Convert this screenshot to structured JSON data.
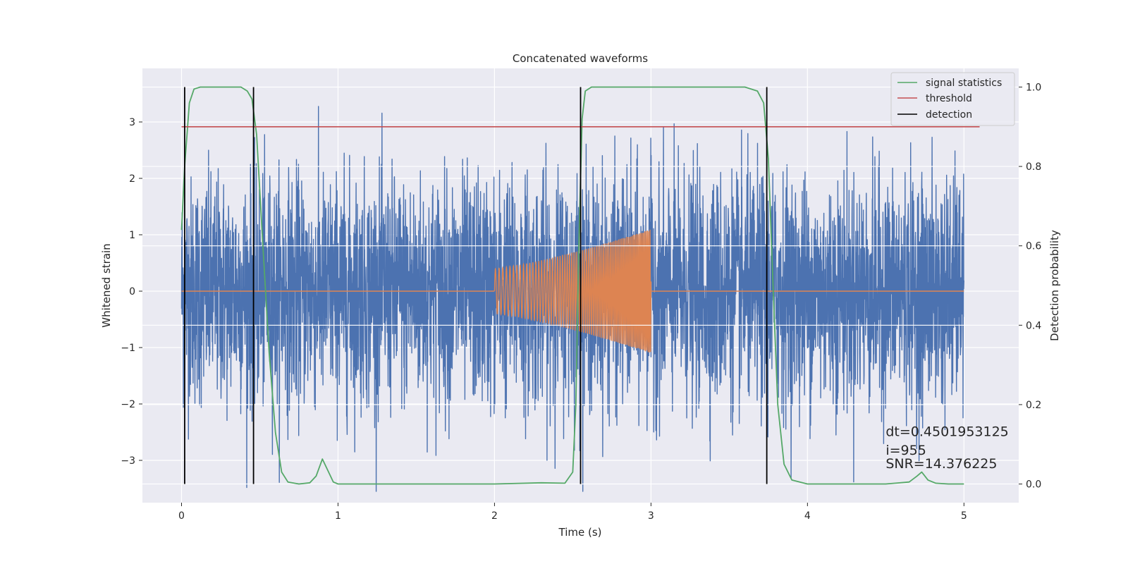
{
  "chart_data": {
    "type": "line",
    "title": "Concatenated waveforms",
    "xlabel": "Time (s)",
    "ylabel_left": "Whitened strain",
    "ylabel_right": "Detection probability",
    "xlim": [
      -0.25,
      5.35
    ],
    "ylim_left": [
      -3.75,
      3.95
    ],
    "ylim_right": [
      -0.047,
      1.047
    ],
    "x_ticks": [
      0,
      1,
      2,
      3,
      4,
      5
    ],
    "x_tick_labels": [
      "0",
      "1",
      "2",
      "3",
      "4",
      "5"
    ],
    "y_left_ticks": [
      -3,
      -2,
      -1,
      0,
      1,
      2,
      3
    ],
    "y_left_tick_labels": [
      "−3",
      "−2",
      "−1",
      "0",
      "1",
      "2",
      "3"
    ],
    "y_right_ticks": [
      0.0,
      0.2,
      0.4,
      0.6,
      0.8,
      1.0
    ],
    "y_right_tick_labels": [
      "0.0",
      "0.2",
      "0.4",
      "0.6",
      "0.8",
      "1.0"
    ],
    "grid": true,
    "legend_position": "top-right",
    "legend": [
      {
        "label": "signal statistics",
        "color": "#55a868"
      },
      {
        "label": "threshold",
        "color": "#c44e52"
      },
      {
        "label": "detection",
        "color": "#000000"
      }
    ],
    "strain_noise": {
      "color": "#4c72b0",
      "x_range": [
        0,
        5
      ],
      "typical_amplitude": 1.0,
      "peak_amplitude": 3.55
    },
    "injected_signal": {
      "color": "#dd8452",
      "x_range": [
        2,
        3
      ],
      "amplitude_start": 0.4,
      "amplitude_end": 1.1
    },
    "signal_statistics": {
      "color": "#55a868",
      "x": [
        0.0,
        0.02,
        0.05,
        0.08,
        0.12,
        0.2,
        0.3,
        0.38,
        0.42,
        0.45,
        0.48,
        0.52,
        0.56,
        0.6,
        0.64,
        0.68,
        0.75,
        0.82,
        0.86,
        0.9,
        0.94,
        0.97,
        1.0,
        1.5,
        2.0,
        2.3,
        2.45,
        2.5,
        2.52,
        2.54,
        2.56,
        2.58,
        2.62,
        2.7,
        3.0,
        3.6,
        3.68,
        3.72,
        3.75,
        3.78,
        3.81,
        3.85,
        3.9,
        4.0,
        4.5,
        4.65,
        4.7,
        4.73,
        4.77,
        4.82,
        4.9,
        5.0
      ],
      "values": [
        0.64,
        0.8,
        0.96,
        0.995,
        1.0,
        1.0,
        1.0,
        1.0,
        0.99,
        0.97,
        0.88,
        0.6,
        0.33,
        0.13,
        0.03,
        0.005,
        0.0,
        0.003,
        0.02,
        0.063,
        0.03,
        0.005,
        0.0,
        0.0,
        0.0,
        0.003,
        0.002,
        0.03,
        0.2,
        0.62,
        0.92,
        0.99,
        1.0,
        1.0,
        1.0,
        1.0,
        0.99,
        0.96,
        0.82,
        0.5,
        0.2,
        0.05,
        0.01,
        0.0,
        0.0,
        0.005,
        0.02,
        0.03,
        0.01,
        0.002,
        0.0,
        0.0
      ]
    },
    "threshold": {
      "color": "#c44e52",
      "x_range": [
        0,
        5.1
      ],
      "value": 0.9
    },
    "detections": {
      "color": "#000000",
      "x": [
        0.02,
        0.46,
        2.55,
        3.74
      ],
      "range": [
        0.0,
        1.0
      ]
    },
    "annotations": [
      {
        "text": "dt=0.4501953125",
        "x": 4.5,
        "y": -2.57
      },
      {
        "text": " i=955",
        "x": 4.5,
        "y": -2.9
      },
      {
        "text": "SNR=14.376225",
        "x": 4.5,
        "y": -3.14
      }
    ]
  }
}
